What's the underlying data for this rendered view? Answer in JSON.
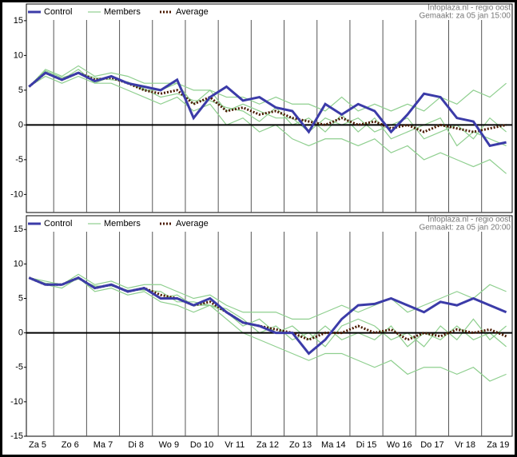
{
  "chart_data": [
    {
      "type": "line",
      "source": "Infoplaza.nl - regio oost",
      "made": "Gemaakt: za 05 jan 15:00",
      "x": [
        0.25,
        0.75,
        1.25,
        1.75,
        2.25,
        2.75,
        3.25,
        3.75,
        4.25,
        4.75,
        5.25,
        5.75,
        6.25,
        6.75,
        7.25,
        7.75,
        8.25,
        8.75,
        9.25,
        9.75,
        10.25,
        10.75,
        11.25,
        11.75,
        12.25,
        12.75,
        13.25,
        13.75,
        14.25,
        14.75
      ],
      "xlim": [
        0.17,
        14.93
      ],
      "ylim": [
        -12.6,
        17.4
      ],
      "yticks": [
        15,
        10,
        5,
        0,
        -5,
        -10
      ],
      "series": [
        {
          "name": "Control",
          "color": "#3b3ba8",
          "values": [
            5.5,
            7.5,
            6.5,
            7.5,
            6.3,
            7,
            6,
            5.5,
            5,
            6.5,
            1,
            4,
            5.5,
            3.5,
            4,
            2.5,
            2,
            -1,
            3,
            1.5,
            3,
            2,
            -1,
            1.5,
            4.5,
            4,
            1,
            0.5,
            -3,
            -2.5
          ]
        },
        {
          "name": "Members",
          "color": "#8fcf8f",
          "values": [
            [
              5.5,
              8,
              7,
              8.5,
              7,
              7.5,
              7,
              6,
              6,
              6,
              5,
              5,
              4,
              4,
              3,
              4,
              3,
              3,
              2,
              4,
              2,
              3,
              2,
              3,
              2,
              4,
              3,
              5,
              4,
              6
            ],
            [
              5.5,
              7,
              6,
              7,
              6,
              6,
              5,
              4,
              3,
              4,
              2,
              3,
              0,
              1,
              -1,
              0,
              -2,
              -3,
              -2,
              -2,
              -3,
              -2,
              -4,
              -3,
              -5,
              -4,
              -5,
              -6,
              -5,
              -7
            ],
            [
              5.5,
              7.5,
              6.5,
              8,
              6,
              7,
              6,
              5,
              5,
              6,
              3,
              5,
              2,
              3,
              2,
              1,
              1,
              -1,
              1,
              0,
              1,
              -1,
              0,
              1,
              -2,
              -1,
              0,
              -2,
              1,
              -1
            ],
            [
              5.5,
              7.8,
              6.8,
              7.5,
              6.8,
              6.5,
              6.2,
              5.2,
              4,
              4.5,
              3.5,
              3.5,
              2.5,
              2,
              0.5,
              2.5,
              0,
              1,
              -1,
              1.5,
              -1,
              1,
              -2,
              -1,
              0,
              1,
              -3,
              -1,
              -2,
              -3
            ]
          ]
        },
        {
          "name": "Average",
          "color": "#4a1a00",
          "values": [
            5.5,
            7.5,
            6.5,
            7.5,
            6.5,
            6.8,
            6,
            5,
            4.5,
            5,
            3,
            4,
            2,
            2.5,
            1.5,
            2,
            1,
            0.5,
            0,
            1,
            0,
            0.5,
            -0.5,
            0,
            -1,
            0,
            -0.5,
            -1,
            -0.5,
            0
          ]
        }
      ]
    },
    {
      "type": "line",
      "source": "Infoplaza.nl - regio oost",
      "made": "Gemaakt: za 05 jan 20:00",
      "x": [
        0.25,
        0.75,
        1.25,
        1.75,
        2.25,
        2.75,
        3.25,
        3.75,
        4.25,
        4.75,
        5.25,
        5.75,
        6.25,
        6.75,
        7.25,
        7.75,
        8.25,
        8.75,
        9.25,
        9.75,
        10.25,
        10.75,
        11.25,
        11.75,
        12.25,
        12.75,
        13.25,
        13.75,
        14.25,
        14.75
      ],
      "xlim": [
        0.17,
        14.93
      ],
      "ylim": [
        -15,
        17
      ],
      "yticks": [
        15,
        10,
        5,
        0,
        -5,
        -10,
        -15
      ],
      "xticks": [
        {
          "value": 0,
          "label": "Za 5"
        },
        {
          "value": 1,
          "label": "Zo 6"
        },
        {
          "value": 2,
          "label": "Ma 7"
        },
        {
          "value": 3,
          "label": "Di 8"
        },
        {
          "value": 4,
          "label": "Wo 9"
        },
        {
          "value": 5,
          "label": "Do 10"
        },
        {
          "value": 6,
          "label": "Vr 11"
        },
        {
          "value": 7,
          "label": "Za 12"
        },
        {
          "value": 8,
          "label": "Zo 13"
        },
        {
          "value": 9,
          "label": "Ma 14"
        },
        {
          "value": 10,
          "label": "Di 15"
        },
        {
          "value": 11,
          "label": "Wo 16"
        },
        {
          "value": 12,
          "label": "Do 17"
        },
        {
          "value": 13,
          "label": "Vr 18"
        },
        {
          "value": 14,
          "label": "Za 19"
        }
      ],
      "series": [
        {
          "name": "Control",
          "color": "#3b3ba8",
          "values": [
            8,
            7,
            7,
            8,
            6.5,
            7,
            6,
            6.5,
            5,
            5,
            4,
            5,
            3,
            1.5,
            1,
            0,
            0,
            -3,
            -1,
            2,
            4,
            4.2,
            5,
            4,
            3,
            4.5,
            4,
            5,
            4,
            3
          ]
        },
        {
          "name": "Members",
          "color": "#8fcf8f",
          "values": [
            [
              8,
              7.5,
              7,
              8.5,
              7,
              7.5,
              6.5,
              7,
              7,
              6,
              5,
              5.5,
              4,
              3,
              3,
              3,
              2,
              2,
              3,
              4,
              3,
              4,
              5,
              3,
              4,
              5,
              6,
              5,
              7,
              6
            ],
            [
              8,
              7,
              6.5,
              8,
              6,
              6.5,
              5.5,
              6,
              4.5,
              4,
              3,
              4,
              2,
              0,
              -1,
              -2,
              -3,
              -4,
              -3,
              -3,
              -4,
              -5,
              -4,
              -6,
              -5,
              -5,
              -6,
              -5,
              -7,
              -6
            ],
            [
              8,
              7,
              7,
              8,
              6.5,
              7,
              6,
              6.5,
              5,
              5.5,
              4,
              4,
              3,
              1,
              2,
              0,
              1,
              -1,
              1,
              -1,
              0,
              -1,
              1,
              -2,
              0,
              -1,
              1,
              -1,
              0,
              -2
            ],
            [
              8,
              7.2,
              7,
              7.8,
              6.8,
              6.8,
              6.2,
              6.2,
              6,
              4.5,
              4.5,
              4,
              3.5,
              2,
              0,
              1,
              -1,
              0,
              -2,
              1,
              2,
              1,
              -1,
              0,
              -2,
              1,
              -1,
              2,
              -1,
              1
            ]
          ]
        },
        {
          "name": "Average",
          "color": "#4a1a00",
          "values": [
            8,
            7,
            7,
            8,
            6.5,
            7,
            6,
            6.5,
            5.5,
            5,
            4,
            4.5,
            3,
            1.5,
            1,
            0.5,
            0,
            -1,
            0,
            0,
            1,
            0,
            0.5,
            -1,
            0,
            -0.5,
            0.5,
            0,
            0.5,
            -0.5
          ]
        }
      ]
    }
  ]
}
